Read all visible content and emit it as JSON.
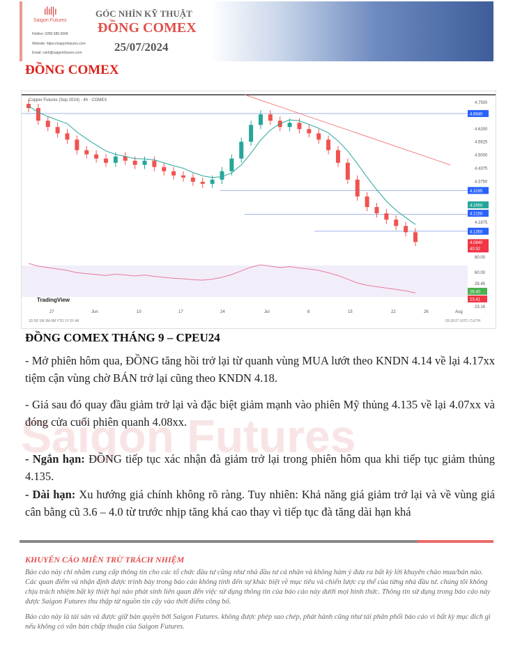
{
  "header": {
    "brand": "Saigon Futures",
    "hotline": "Hotline: 0280 686 0068",
    "website": "Website: https://saigonfutures.com",
    "email": "Email: cskh@saigonfutures.com",
    "subtitle": "GÓC NHÌN KỸ THUẬT",
    "title": "ĐỒNG COMEX",
    "date": "25/07/2024"
  },
  "doc_title": "ĐỒNG COMEX",
  "chart": {
    "symbol": "Copper Futures (Sep 2024) · 4h · COMEX",
    "brand": "TradingView",
    "price_labels": [
      "4.7500",
      "4.6250",
      "4.5625",
      "4.5000",
      "4.4375",
      "4.3750",
      "4.1875"
    ],
    "level_tags": [
      "4.6940",
      "4.3285",
      "4.2450",
      "4.2150",
      "4.1350"
    ],
    "last_price": "4.0840",
    "countdown": "40:32",
    "rsi_labels": [
      "80.00",
      "60.00",
      "28.45",
      "23.16"
    ],
    "rsi_tags": [
      "26.40",
      "23.41"
    ],
    "x_labels": [
      "27",
      "Jun",
      "10",
      "17",
      "24",
      "Jul",
      "8",
      "15",
      "22",
      "26",
      "Aug"
    ],
    "timeframes": "1D 5D 1M 3M 6M YTD 1Y 5Y All",
    "clock": "03:29:27 (UTC-7) ETH",
    "closes": [
      4.72,
      4.66,
      4.63,
      4.6,
      4.57,
      4.52,
      4.5,
      4.48,
      4.46,
      4.49,
      4.47,
      4.45,
      4.47,
      4.44,
      4.42,
      4.4,
      4.39,
      4.37,
      4.36,
      4.38,
      4.42,
      4.48,
      4.56,
      4.64,
      4.69,
      4.66,
      4.63,
      4.65,
      4.62,
      4.6,
      4.57,
      4.52,
      4.46,
      4.38,
      4.3,
      4.25,
      4.22,
      4.19,
      4.16,
      4.13,
      4.084
    ],
    "colors": {
      "up": "#26a69a",
      "down": "#ef5350",
      "ma": "#26a69a",
      "trend": "#f08080",
      "level": "#2962ff"
    }
  },
  "section_title": "ĐỒNG COMEX THÁNG 9 – CPEU24",
  "paragraphs": [
    "- Mở phiên hôm qua,  ĐỒNG tăng hồi trở lại từ quanh vùng MUA lướt theo KNDN 4.14 về lại 4.17xx tiệm cận vùng chờ BÁN trở lại cũng theo KNDN 4.18.",
    "- Giá sau đó quay đầu giảm trở lại và đặc biệt giảm mạnh vào phiên Mỹ thủng 4.135 về lại 4.07xx và đóng cửa cuối phiên quanh 4.08xx."
  ],
  "short_term": {
    "label": "- Ngắn hạn:",
    "text": " ĐỒNG tiếp tục xác nhận đà giảm trở lại trong phiên hôm qua khi tiếp tục giảm thủng 4.135."
  },
  "long_term": {
    "label": "- Dài hạn:",
    "text": " Xu hướng giá chính không rõ ràng. Tuy nhiên: Khả năng giá giảm trở lại và về vùng giá cân bằng cũ 3.6 – 4.0 từ trước nhịp tăng khá cao thay vì tiếp tục đà tăng dài hạn khá"
  },
  "watermark": "Saigon Futures",
  "disclaimer": {
    "title": "KHUYẾN CÁO MIỄN TRỪ TRÁCH NHIỆM",
    "p1": "Báo cáo này chỉ nhằm cung cấp thông tin cho các tổ chức đầu tư cũng như nhà đầu tư cá nhân và không hàm ý đưa ra bất kỳ lời khuyên chào mua/bán nào. Các quan điểm và nhận định được trình bày trong báo cáo không tính đến sự khác biệt về mục tiêu và chiến lược cụ thể của từng nhà đầu tư. chúng tôi không chịu trách nhiệm bất kỳ thiệt hại nào phát sinh liên quan đến việc sử dụng thông tin của báo cáo này dưới mọi hình thức. Thông tin sử dụng trong báo cáo này được Saigon Futures thu thập từ nguồn tin cậy vào thời điểm công bố.",
    "p2": "Báo cáo này là tài sản và được giữ bản quyền bởi Saigon Futures. không được phép sao chép, phát hành cũng như tái phân phối báo cáo vì bất kỳ mục đích gì nếu không có văn bản chấp thuận của Saigon Futures."
  }
}
